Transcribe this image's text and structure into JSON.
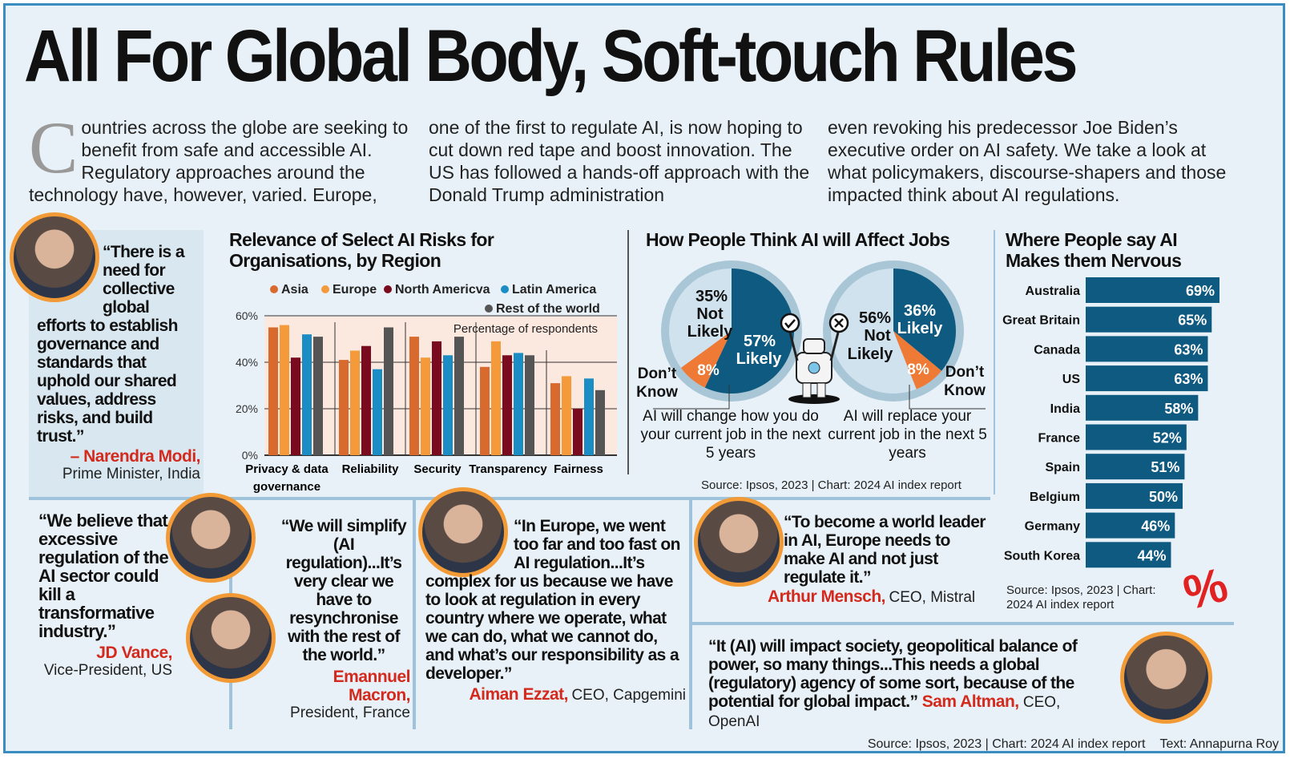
{
  "title": "All For Global Body, Soft-touch Rules",
  "intro": {
    "dropcap": "C",
    "col1": "ountries across the globe are seeking to benefit from safe and accessible AI. Regulatory approaches around the technology have, however, varied. Europe,",
    "col2": "one of the first to regulate AI, is now hoping to cut down red tape and boost innovation. The US has followed a hands-off approach with the Donald Trump administration",
    "col3": "even revoking his predecessor Joe Biden’s executive order on AI safety. We take a look at what policymakers, discourse-shapers and those impacted think about AI regulations."
  },
  "quotes": {
    "modi": {
      "text": "“There is a need for collective global efforts to establish governance and standards that uphold our shared values, address risks, and build trust.”",
      "name": "– Narendra Modi,",
      "role": "Prime Minister, India"
    },
    "vance": {
      "text": "“We believe that excessive regulation of the AI sector could kill a transformative industry.”",
      "name": "JD Vance,",
      "role": "Vice-President, US"
    },
    "macron": {
      "text": "“We will simplify (AI regulation)...It’s very clear we have to resynchronise with the rest of the world.”",
      "name": "Emannuel Macron,",
      "role": "President, France"
    },
    "ezzat": {
      "text": "“In Europe, we went too far and too fast on AI regulation...It’s complex for us because we have to look at regulation in every country where we operate, what we can do, what we cannot do, and what’s our responsibility as a developer.”",
      "name": "Aiman Ezzat,",
      "role": "CEO, Capgemini"
    },
    "mensch": {
      "text": "“To become a world leader in AI, Europe needs to make AI and not just regulate it.”",
      "name": "Arthur Mensch,",
      "role": "CEO, Mistral"
    },
    "altman": {
      "text": "“It (AI) will impact society, geopolitical balance of power, so many things...This needs a global (regulatory) agency of some sort, because of the potential for global impact.”",
      "name": "Sam Altman,",
      "role": "CEO, OpenAI"
    }
  },
  "chart_data": [
    {
      "type": "bar",
      "title": "Relevance of Select AI Risks for Organisations, by Region",
      "annotation": "Percentage of respondents",
      "categories": [
        "Privacy & data governance",
        "Reliability",
        "Security",
        "Transparency",
        "Fairness"
      ],
      "ylim": [
        0,
        60
      ],
      "yticks": [
        "0%",
        "20%",
        "40%",
        "60%"
      ],
      "grid": true,
      "legend": "top",
      "series": [
        {
          "name": "Asia",
          "color": "#d86a2e",
          "values": [
            55,
            41,
            51,
            38,
            31
          ]
        },
        {
          "name": "Europe",
          "color": "#f49a3a",
          "values": [
            56,
            45,
            42,
            49,
            34
          ]
        },
        {
          "name": "North Americva",
          "color": "#7a0a1e",
          "values": [
            42,
            47,
            49,
            43,
            20
          ]
        },
        {
          "name": "Latin America",
          "color": "#1a8dc4",
          "values": [
            52,
            37,
            43,
            44,
            33
          ]
        },
        {
          "name": "Rest of the world",
          "color": "#555555",
          "values": [
            51,
            55,
            51,
            43,
            28
          ]
        }
      ]
    },
    {
      "type": "pie",
      "title": "How People Think AI will Affect Jobs",
      "caption": "AI will change how you do your current job in the next 5 years",
      "slices": [
        {
          "label": "Likely",
          "value": 57,
          "color": "#0e5a80"
        },
        {
          "label": "Don’t Know",
          "value": 8,
          "color": "#ee7a36"
        },
        {
          "label": "Not Likely",
          "value": 35,
          "color": "#cfe2ee"
        }
      ]
    },
    {
      "type": "pie",
      "caption": "AI will replace your current job in the next 5 years",
      "slices": [
        {
          "label": "Likely",
          "value": 36,
          "color": "#0e5a80"
        },
        {
          "label": "Don’t Know",
          "value": 8,
          "color": "#ee7a36"
        },
        {
          "label": "Not Likely",
          "value": 56,
          "color": "#cfe2ee"
        }
      ]
    },
    {
      "type": "bar",
      "orientation": "horizontal",
      "title": "Where People say AI Makes them Nervous",
      "color": "#0e5a80",
      "categories": [
        "Australia",
        "Great Britain",
        "Canada",
        "US",
        "India",
        "France",
        "Spain",
        "Belgium",
        "Germany",
        "South Korea"
      ],
      "values": [
        69,
        65,
        63,
        63,
        58,
        52,
        51,
        50,
        46,
        44
      ],
      "labels": [
        "69%",
        "65%",
        "63%",
        "63%",
        "58%",
        "52%",
        "51%",
        "50%",
        "46%",
        "44%"
      ]
    }
  ],
  "pie_text": {
    "p1_likely": "57%",
    "p1_not": "35%",
    "p1_dk": "8%",
    "p2_likely": "36%",
    "p2_not": "56%",
    "p2_dk": "8%",
    "likely": "Likely",
    "not": "Not",
    "likely2": "Likely",
    "dont": "Don’t",
    "know": "Know"
  },
  "sources": {
    "jobs": "Source: Ipsos, 2023 | Chart: 2024 AI index report",
    "nervous": "Source: Ipsos, 2023 | Chart: 2024 AI index report",
    "footer": "Source: Ipsos, 2023 | Chart: 2024 AI index report",
    "credit": "Text: Annapurna Roy"
  }
}
